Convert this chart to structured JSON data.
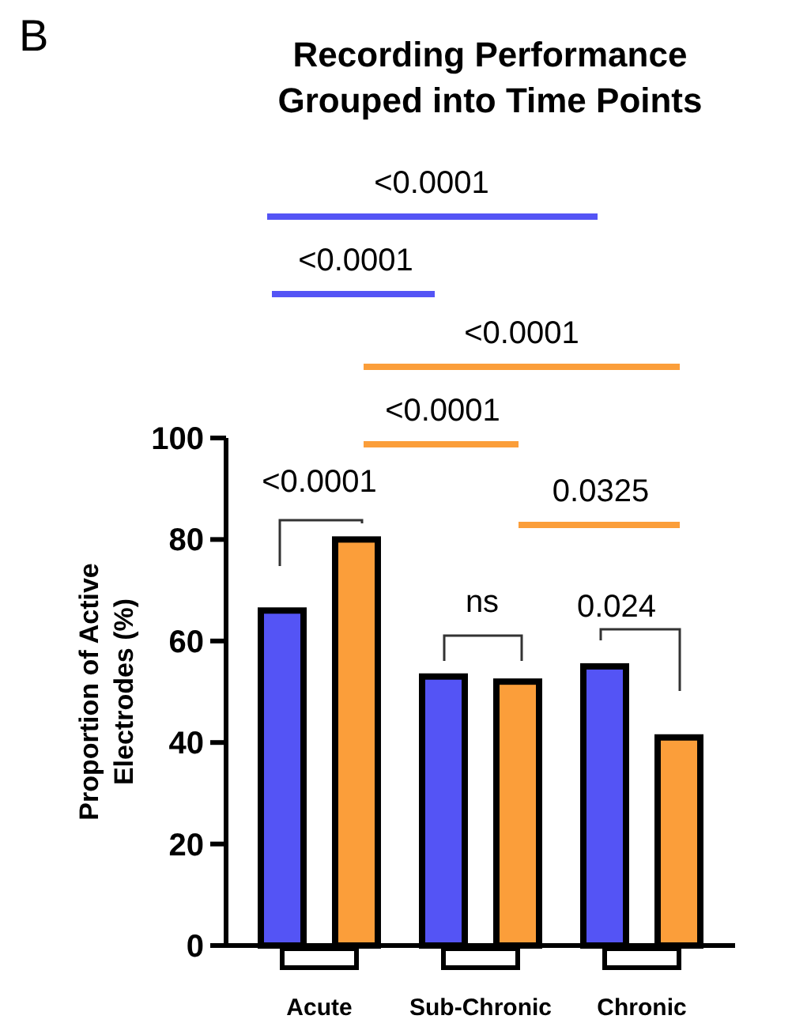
{
  "chart_data": {
    "type": "bar",
    "title": "Recording Performance\nGrouped into Time Points",
    "ylabel": "Proportion of Active\nElectrodes  (%)",
    "categories": [
      "Acute",
      "Sub-Chronic",
      "Chronic"
    ],
    "series": [
      {
        "color": "#5454f5",
        "values": [
          66,
          53,
          55
        ]
      },
      {
        "color": "#fb9e3a",
        "values": [
          80,
          52,
          41
        ]
      }
    ],
    "ylim": [
      0,
      100
    ],
    "yticks": [
      0,
      20,
      40,
      60,
      80,
      100
    ],
    "grid": false,
    "annotations": [
      "B",
      "<0.0001",
      "<0.0001",
      "<0.0001",
      "<0.0001",
      "0.0325",
      "<0.0001",
      "ns",
      "0.024"
    ]
  }
}
